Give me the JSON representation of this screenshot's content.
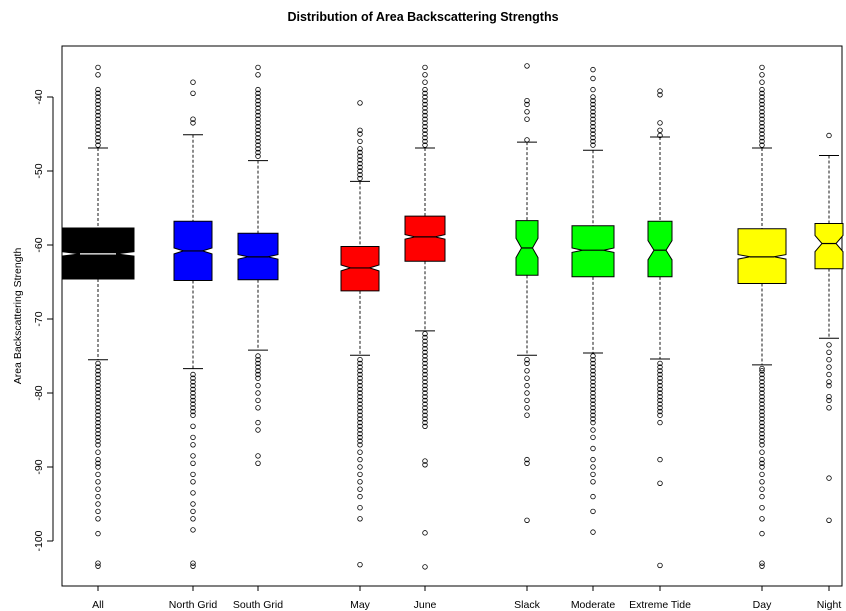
{
  "chart_data": {
    "type": "boxplot",
    "title": "Distribution of Area Backscattering Strengths",
    "xlabel": "",
    "ylabel": "Area Backscattering Strength",
    "ylim": [
      -106,
      -34
    ],
    "yticks": [
      -40,
      -50,
      -60,
      -70,
      -80,
      -90,
      -100
    ],
    "notched": true,
    "groups": [
      {
        "label": "All",
        "color": "#000000",
        "q1": -64.6,
        "median": -61.2,
        "q3": -57.7,
        "notch": [
          -61.5,
          -60.9
        ],
        "whisker_low": -75.5,
        "whisker_high": -46.9,
        "outliers": [
          -36.0,
          -37.0,
          -39.0,
          -39.5,
          -40.0,
          -40.5,
          -41.0,
          -41.5,
          -42.0,
          -42.5,
          -43.0,
          -43.5,
          -44.0,
          -44.5,
          -45.0,
          -45.5,
          -46.0,
          -46.5,
          -76.0,
          -76.5,
          -77.0,
          -77.5,
          -78.0,
          -78.5,
          -79.0,
          -79.5,
          -80.0,
          -80.5,
          -81.0,
          -81.5,
          -82.0,
          -82.5,
          -83.0,
          -83.5,
          -84.0,
          -84.5,
          -85.0,
          -85.5,
          -86.0,
          -86.5,
          -87.0,
          -88.0,
          -89.0,
          -89.5,
          -90.0,
          -91.0,
          -92.0,
          -93.0,
          -94.0,
          -95.0,
          -96.0,
          -97.0,
          -99.0,
          -103.0,
          -103.4
        ]
      },
      {
        "label": "North Grid",
        "color": "#0000ff",
        "q1": -64.8,
        "median": -60.8,
        "q3": -56.8,
        "notch": [
          -61.2,
          -60.4
        ],
        "whisker_low": -76.7,
        "whisker_high": -45.1,
        "outliers": [
          -38.0,
          -39.5,
          -43.0,
          -43.5,
          -77.5,
          -78.0,
          -78.5,
          -79.0,
          -79.5,
          -80.0,
          -80.5,
          -81.0,
          -81.5,
          -82.0,
          -82.5,
          -83.0,
          -84.5,
          -86.0,
          -87.0,
          -88.5,
          -89.5,
          -91.0,
          -92.0,
          -93.5,
          -95.0,
          -96.0,
          -97.0,
          -98.5,
          -103.0,
          -103.4
        ]
      },
      {
        "label": "South Grid",
        "color": "#0000ff",
        "q1": -64.7,
        "median": -61.6,
        "q3": -58.4,
        "notch": [
          -61.9,
          -61.3
        ],
        "whisker_low": -74.2,
        "whisker_high": -48.6,
        "outliers": [
          -36.0,
          -37.0,
          -39.0,
          -39.5,
          -40.0,
          -40.5,
          -41.0,
          -41.5,
          -42.0,
          -42.5,
          -43.0,
          -43.5,
          -44.0,
          -44.5,
          -45.0,
          -45.5,
          -46.0,
          -46.5,
          -47.0,
          -47.5,
          -48.0,
          -75.0,
          -75.5,
          -76.0,
          -76.5,
          -77.0,
          -77.5,
          -78.0,
          -79.0,
          -80.0,
          -81.0,
          -82.0,
          -84.0,
          -85.0,
          -88.5,
          -89.5
        ]
      },
      {
        "label": "May",
        "color": "#ff0000",
        "q1": -66.2,
        "median": -63.1,
        "q3": -60.2,
        "notch": [
          -63.5,
          -62.7
        ],
        "whisker_low": -74.9,
        "whisker_high": -51.4,
        "outliers": [
          -40.8,
          -44.5,
          -45.0,
          -46.0,
          -47.0,
          -47.5,
          -48.0,
          -48.5,
          -49.0,
          -49.5,
          -50.0,
          -50.5,
          -51.0,
          -75.5,
          -76.0,
          -76.5,
          -77.0,
          -77.5,
          -78.0,
          -78.5,
          -79.0,
          -79.5,
          -80.0,
          -80.5,
          -81.0,
          -81.5,
          -82.0,
          -82.5,
          -83.0,
          -83.5,
          -84.0,
          -84.5,
          -85.0,
          -85.5,
          -86.0,
          -86.5,
          -87.0,
          -88.0,
          -89.0,
          -90.0,
          -91.0,
          -92.0,
          -93.0,
          -94.0,
          -95.5,
          -97.0,
          -103.2
        ]
      },
      {
        "label": "June",
        "color": "#ff0000",
        "q1": -62.2,
        "median": -58.9,
        "q3": -56.1,
        "notch": [
          -59.2,
          -58.6
        ],
        "whisker_low": -71.6,
        "whisker_high": -46.9,
        "outliers": [
          -36.0,
          -37.0,
          -38.0,
          -39.0,
          -39.5,
          -40.0,
          -40.5,
          -41.0,
          -41.5,
          -42.0,
          -42.5,
          -43.0,
          -43.5,
          -44.0,
          -44.5,
          -45.0,
          -45.5,
          -46.0,
          -46.5,
          -72.0,
          -72.5,
          -73.0,
          -73.5,
          -74.0,
          -74.5,
          -75.0,
          -75.5,
          -76.0,
          -76.5,
          -77.0,
          -77.5,
          -78.0,
          -78.5,
          -79.0,
          -79.5,
          -80.0,
          -80.5,
          -81.0,
          -81.5,
          -82.0,
          -82.5,
          -83.0,
          -83.5,
          -84.0,
          -84.5,
          -89.2,
          -89.7,
          -98.9,
          -103.5
        ]
      },
      {
        "label": "Slack",
        "color": "#00ff00",
        "q1": -64.1,
        "median": -60.4,
        "q3": -56.7,
        "notch": [
          -61.7,
          -59.1
        ],
        "whisker_low": -74.9,
        "whisker_high": -46.1,
        "outliers": [
          -35.8,
          -40.5,
          -41.0,
          -42.0,
          -43.0,
          -45.8,
          -75.5,
          -76.0,
          -77.0,
          -78.0,
          -79.0,
          -80.0,
          -81.0,
          -82.0,
          -83.0,
          -89.0,
          -89.5,
          -97.2
        ]
      },
      {
        "label": "Moderate",
        "color": "#00ff00",
        "q1": -64.3,
        "median": -60.7,
        "q3": -57.4,
        "notch": [
          -61.0,
          -60.4
        ],
        "whisker_low": -74.6,
        "whisker_high": -47.2,
        "outliers": [
          -36.3,
          -37.5,
          -39.0,
          -40.0,
          -40.5,
          -41.0,
          -41.5,
          -42.0,
          -42.5,
          -43.0,
          -43.5,
          -44.0,
          -44.5,
          -45.0,
          -45.5,
          -46.0,
          -46.5,
          -75.0,
          -75.5,
          -76.0,
          -76.5,
          -77.0,
          -77.5,
          -78.0,
          -78.5,
          -79.0,
          -79.5,
          -80.0,
          -80.5,
          -81.0,
          -81.5,
          -82.0,
          -82.5,
          -83.0,
          -83.5,
          -84.0,
          -85.0,
          -86.0,
          -87.5,
          -89.0,
          -90.0,
          -91.0,
          -92.0,
          -94.0,
          -96.0,
          -98.8
        ]
      },
      {
        "label": "Extreme Tide",
        "color": "#00ff00",
        "q1": -64.3,
        "median": -60.7,
        "q3": -56.8,
        "notch": [
          -62.0,
          -59.4
        ],
        "whisker_low": -75.4,
        "whisker_high": -45.4,
        "outliers": [
          -39.2,
          -39.7,
          -43.5,
          -44.5,
          -45.2,
          -76.0,
          -76.5,
          -77.0,
          -77.5,
          -78.0,
          -78.5,
          -79.0,
          -79.5,
          -80.0,
          -80.5,
          -81.0,
          -81.5,
          -82.0,
          -82.5,
          -83.0,
          -84.0,
          -89.0,
          -92.2,
          -103.3
        ]
      },
      {
        "label": "Day",
        "color": "#ffff00",
        "q1": -65.2,
        "median": -61.6,
        "q3": -57.8,
        "notch": [
          -61.9,
          -61.3
        ],
        "whisker_low": -76.2,
        "whisker_high": -46.9,
        "outliers": [
          -36.0,
          -37.0,
          -38.0,
          -39.0,
          -39.5,
          -40.0,
          -40.5,
          -41.0,
          -41.5,
          -42.0,
          -42.5,
          -43.0,
          -43.5,
          -44.0,
          -44.5,
          -45.0,
          -45.5,
          -46.0,
          -46.5,
          -76.7,
          -77.0,
          -77.5,
          -78.0,
          -78.5,
          -79.0,
          -79.5,
          -80.0,
          -80.5,
          -81.0,
          -81.5,
          -82.0,
          -82.5,
          -83.0,
          -83.5,
          -84.0,
          -84.5,
          -85.0,
          -85.5,
          -86.0,
          -86.5,
          -87.0,
          -88.0,
          -89.0,
          -89.5,
          -90.0,
          -91.0,
          -92.0,
          -93.0,
          -94.0,
          -95.5,
          -97.0,
          -99.0,
          -103.0,
          -103.4
        ]
      },
      {
        "label": "Night",
        "color": "#ffff00",
        "q1": -63.2,
        "median": -59.8,
        "q3": -57.1,
        "notch": [
          -60.9,
          -58.7
        ],
        "whisker_low": -72.6,
        "whisker_high": -47.9,
        "outliers": [
          -45.2,
          -73.5,
          -74.5,
          -75.5,
          -76.5,
          -77.5,
          -78.5,
          -79.0,
          -80.5,
          -81.0,
          -82.0,
          -91.5,
          -97.2
        ]
      }
    ]
  }
}
